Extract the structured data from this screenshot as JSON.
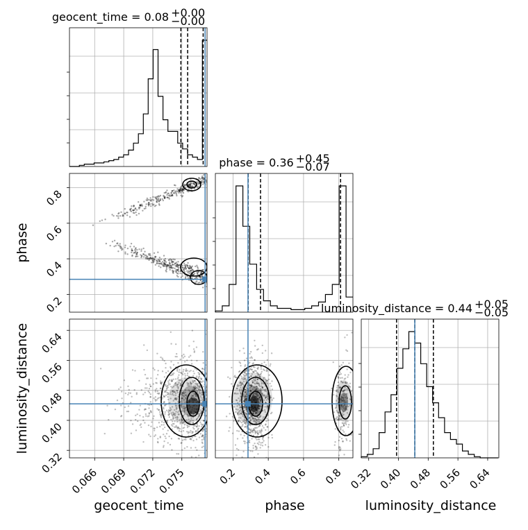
{
  "chart_data": {
    "type": "corner",
    "parameters": [
      "geocent_time",
      "phase",
      "luminosity_distance"
    ],
    "axis_labels": {
      "x": [
        "geocent_time",
        "phase",
        "luminosity_distance"
      ],
      "y": [
        "phase",
        "luminosity_distance"
      ]
    },
    "titles": [
      {
        "param": "geocent_time",
        "base": "geocent_time = 0.08",
        "plus": "+0.00",
        "minus": "−0.00"
      },
      {
        "param": "phase",
        "base": "phase = 0.36",
        "plus": "+0.45",
        "minus": "−0.07"
      },
      {
        "param": "luminosity_distance",
        "base": "luminosity_distance = 0.44",
        "plus": "+0.05",
        "minus": "−0.05"
      }
    ],
    "ranges": {
      "geocent_time": [
        0.0634,
        0.0776
      ],
      "phase": [
        0.1,
        0.88
      ],
      "luminosity_distance": [
        0.3,
        0.67
      ]
    },
    "ticks": {
      "geocent_time": [
        "0.066",
        "0.069",
        "0.072",
        "0.075"
      ],
      "phase": [
        "0.2",
        "0.4",
        "0.6",
        "0.8"
      ],
      "luminosity_distance": [
        "0.32",
        "0.40",
        "0.48",
        "0.56",
        "0.64"
      ]
    },
    "truths": {
      "geocent_time": 0.0774,
      "phase": 0.285,
      "luminosity_distance": 0.444
    },
    "quantiles": {
      "geocent_time": [
        0.0749,
        0.0756,
        0.0772
      ],
      "phase": [
        0.286,
        0.356,
        0.81
      ],
      "luminosity_distance": [
        0.395,
        0.444,
        0.494
      ]
    },
    "histograms": {
      "geocent_time": {
        "edges_start": 0.0634,
        "bin_width": 0.000508,
        "counts": [
          0,
          0,
          1,
          2,
          2,
          3,
          3,
          4,
          5,
          6,
          8,
          10,
          14,
          20,
          28,
          45,
          75,
          100,
          60,
          40,
          30,
          30,
          20,
          15,
          10,
          8,
          6,
          108
        ]
      },
      "phase": {
        "edges_start": 0.1,
        "bin_width": 0.039,
        "counts": [
          1,
          5,
          22,
          100,
          68,
          38,
          18,
          9,
          5,
          3,
          3,
          2,
          2,
          3,
          5,
          8,
          14,
          22,
          100,
          12
        ]
      },
      "luminosity_distance": {
        "edges_start": 0.3,
        "bin_width": 0.016,
        "counts": [
          1,
          3,
          8,
          22,
          40,
          55,
          78,
          95,
          110,
          100,
          82,
          62,
          48,
          35,
          22,
          16,
          12,
          6,
          3,
          1,
          0,
          0,
          0
        ]
      }
    }
  }
}
